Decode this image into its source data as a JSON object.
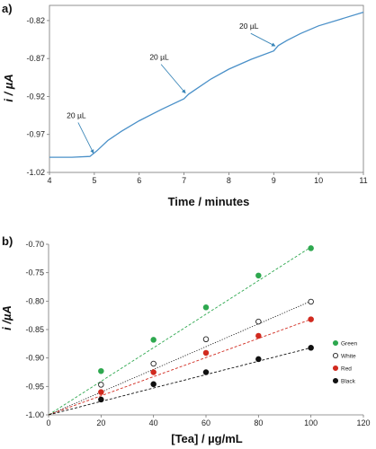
{
  "chart_data": [
    {
      "panel": "a)",
      "type": "line",
      "title": "",
      "xlabel": "Time / minutes",
      "ylabel": "i / µA",
      "xlim": [
        4,
        11
      ],
      "ylim": [
        -1.02,
        -0.8
      ],
      "xticks": [
        "4",
        "5",
        "6",
        "7",
        "8",
        "9",
        "10",
        "11"
      ],
      "yticks": [
        "-1.02",
        "-0.97",
        "-0.92",
        "-0.87",
        "-0.82"
      ],
      "grid": false,
      "series_color": "#4a90c8",
      "x": [
        4.0,
        4.5,
        4.9,
        5.05,
        5.3,
        5.6,
        6.0,
        6.5,
        7.0,
        7.1,
        7.3,
        7.6,
        8.0,
        8.5,
        9.0,
        9.1,
        9.3,
        9.6,
        10.0,
        10.5,
        11.0
      ],
      "y": [
        -1.0,
        -1.0,
        -0.999,
        -0.992,
        -0.978,
        -0.966,
        -0.952,
        -0.937,
        -0.923,
        -0.917,
        -0.909,
        -0.897,
        -0.884,
        -0.871,
        -0.86,
        -0.853,
        -0.846,
        -0.837,
        -0.827,
        -0.818,
        -0.809
      ],
      "annotations": [
        {
          "text": "20 µL",
          "x": 5.0,
          "y": -0.998
        },
        {
          "text": "20 µL",
          "x": 7.05,
          "y": -0.919
        },
        {
          "text": "20 µL",
          "x": 9.05,
          "y": -0.857
        }
      ]
    },
    {
      "panel": "b)",
      "type": "scatter",
      "title": "",
      "xlabel": "[Tea] / µg/mL",
      "ylabel": "i /µA",
      "xlim": [
        0,
        120
      ],
      "ylim": [
        -1.0,
        -0.7
      ],
      "xticks": [
        "0",
        "20",
        "40",
        "60",
        "80",
        "100",
        "120"
      ],
      "yticks": [
        "-1.00",
        "-0.95",
        "-0.90",
        "-0.85",
        "-0.80",
        "-0.75",
        "-0.70"
      ],
      "grid": false,
      "legend_position": "right",
      "series": [
        {
          "name": "Green",
          "color": "#2ea84f",
          "filled": true,
          "x": [
            20,
            40,
            60,
            80,
            100
          ],
          "values": [
            -0.923,
            -0.868,
            -0.811,
            -0.755,
            -0.707
          ],
          "fit": [
            -1.0,
            0.00295
          ]
        },
        {
          "name": "White",
          "color": "#222222",
          "filled": false,
          "x": [
            20,
            40,
            60,
            80,
            100
          ],
          "values": [
            -0.947,
            -0.91,
            -0.867,
            -0.836,
            -0.801
          ],
          "fit": [
            -1.0,
            0.002
          ]
        },
        {
          "name": "Red",
          "color": "#d12a1f",
          "filled": true,
          "x": [
            20,
            40,
            60,
            80,
            100
          ],
          "values": [
            -0.96,
            -0.925,
            -0.891,
            -0.861,
            -0.832
          ],
          "fit": [
            -1.0,
            0.00168
          ]
        },
        {
          "name": "Black",
          "color": "#111111",
          "filled": true,
          "x": [
            20,
            40,
            60,
            80,
            100
          ],
          "values": [
            -0.973,
            -0.946,
            -0.925,
            -0.902,
            -0.882
          ],
          "fit": [
            -1.0,
            0.00118
          ]
        }
      ]
    }
  ]
}
